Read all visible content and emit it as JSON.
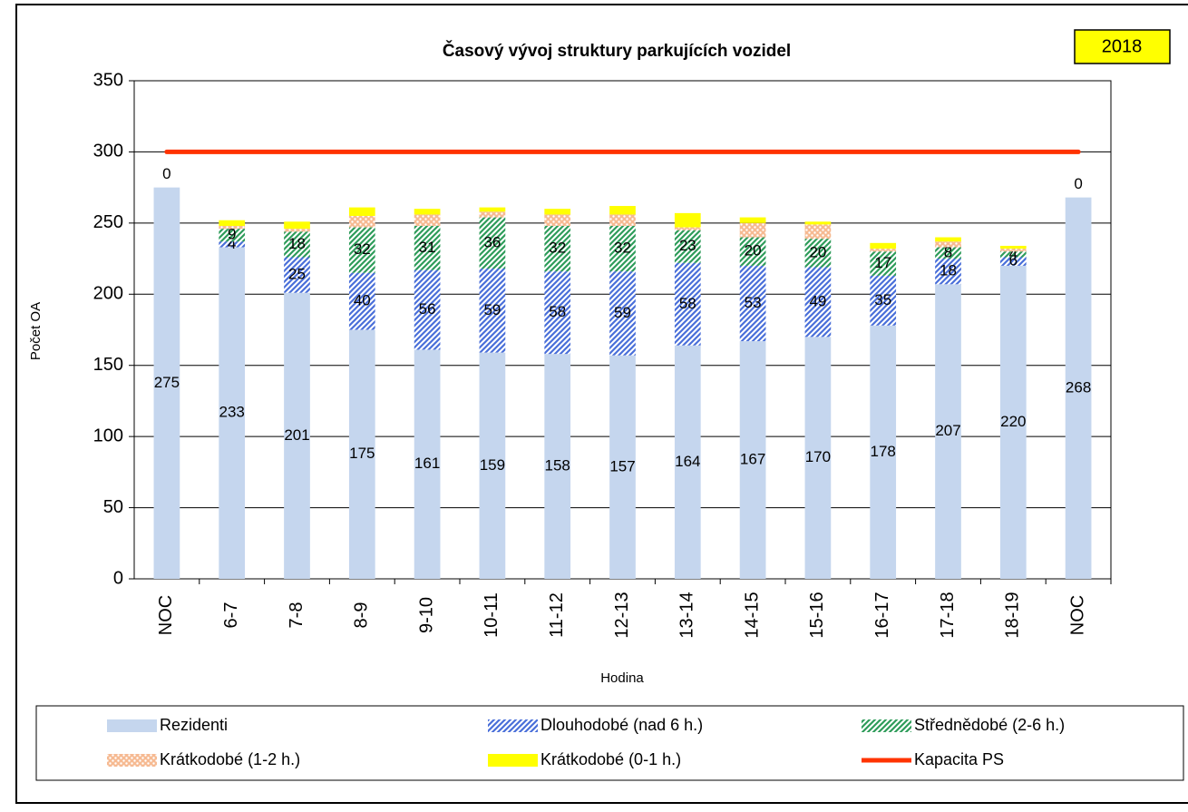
{
  "chart_data": {
    "type": "bar",
    "stacked": true,
    "title": "Časový vývoj struktury parkujících vozidel",
    "annotation": "2018",
    "x_label": "Hodina",
    "y_label": "Počet OA",
    "categories": [
      "NOC",
      "6-7",
      "7-8",
      "8-9",
      "9-10",
      "10-11",
      "11-12",
      "12-13",
      "13-14",
      "14-15",
      "15-16",
      "16-17",
      "17-18",
      "18-19",
      "NOC"
    ],
    "series": [
      {
        "name": "Rezidenti",
        "color": "#c5d6ee",
        "pattern": "solid",
        "values": [
          275,
          233,
          201,
          175,
          161,
          159,
          158,
          157,
          164,
          167,
          170,
          178,
          207,
          220,
          268
        ],
        "value_labels": [
          "275",
          "233",
          "201",
          "175",
          "161",
          "159",
          "158",
          "157",
          "164",
          "167",
          "170",
          "178",
          "207",
          "220",
          "268"
        ]
      },
      {
        "name": "Dlouhodobé (nad 6 h.)",
        "color": "#4a6fd9",
        "pattern": "hatch",
        "values": [
          0,
          4,
          25,
          40,
          56,
          59,
          58,
          59,
          58,
          53,
          49,
          35,
          18,
          6,
          0
        ],
        "value_labels": [
          "0",
          "4",
          "25",
          "40",
          "56",
          "59",
          "58",
          "59",
          "58",
          "53",
          "49",
          "35",
          "18",
          "6",
          "0"
        ]
      },
      {
        "name": "Střednědobé (2-6 h.)",
        "color": "#2e9c5a",
        "pattern": "hatch",
        "values": [
          0,
          9,
          18,
          32,
          31,
          36,
          32,
          32,
          23,
          20,
          20,
          17,
          8,
          4,
          0
        ],
        "value_labels": [
          null,
          "9",
          "18",
          "32",
          "31",
          "36",
          "32",
          "32",
          "23",
          "20",
          "20",
          "17",
          "8",
          "4",
          null
        ]
      },
      {
        "name": "Krátkodobé (1-2 h.)",
        "color": "#f08c4a",
        "pattern": "dots",
        "values": [
          0,
          2,
          2,
          8,
          8,
          4,
          8,
          8,
          2,
          10,
          10,
          2,
          4,
          2,
          0
        ]
      },
      {
        "name": "Krátkodobé (0-1 h.)",
        "color": "#ffff00",
        "pattern": "solid",
        "values": [
          0,
          4,
          5,
          6,
          4,
          3,
          4,
          6,
          10,
          4,
          2,
          4,
          3,
          2,
          0
        ]
      }
    ],
    "lines": [
      {
        "name": "Kapacita PS",
        "color": "#ff3300",
        "values": [
          300,
          300,
          300,
          300,
          300,
          300,
          300,
          300,
          300,
          300,
          300,
          300,
          300,
          300,
          300
        ]
      }
    ],
    "ylim": [
      0,
      350
    ],
    "yticks": [
      0,
      50,
      100,
      150,
      200,
      250,
      300,
      350
    ],
    "grid": true
  }
}
